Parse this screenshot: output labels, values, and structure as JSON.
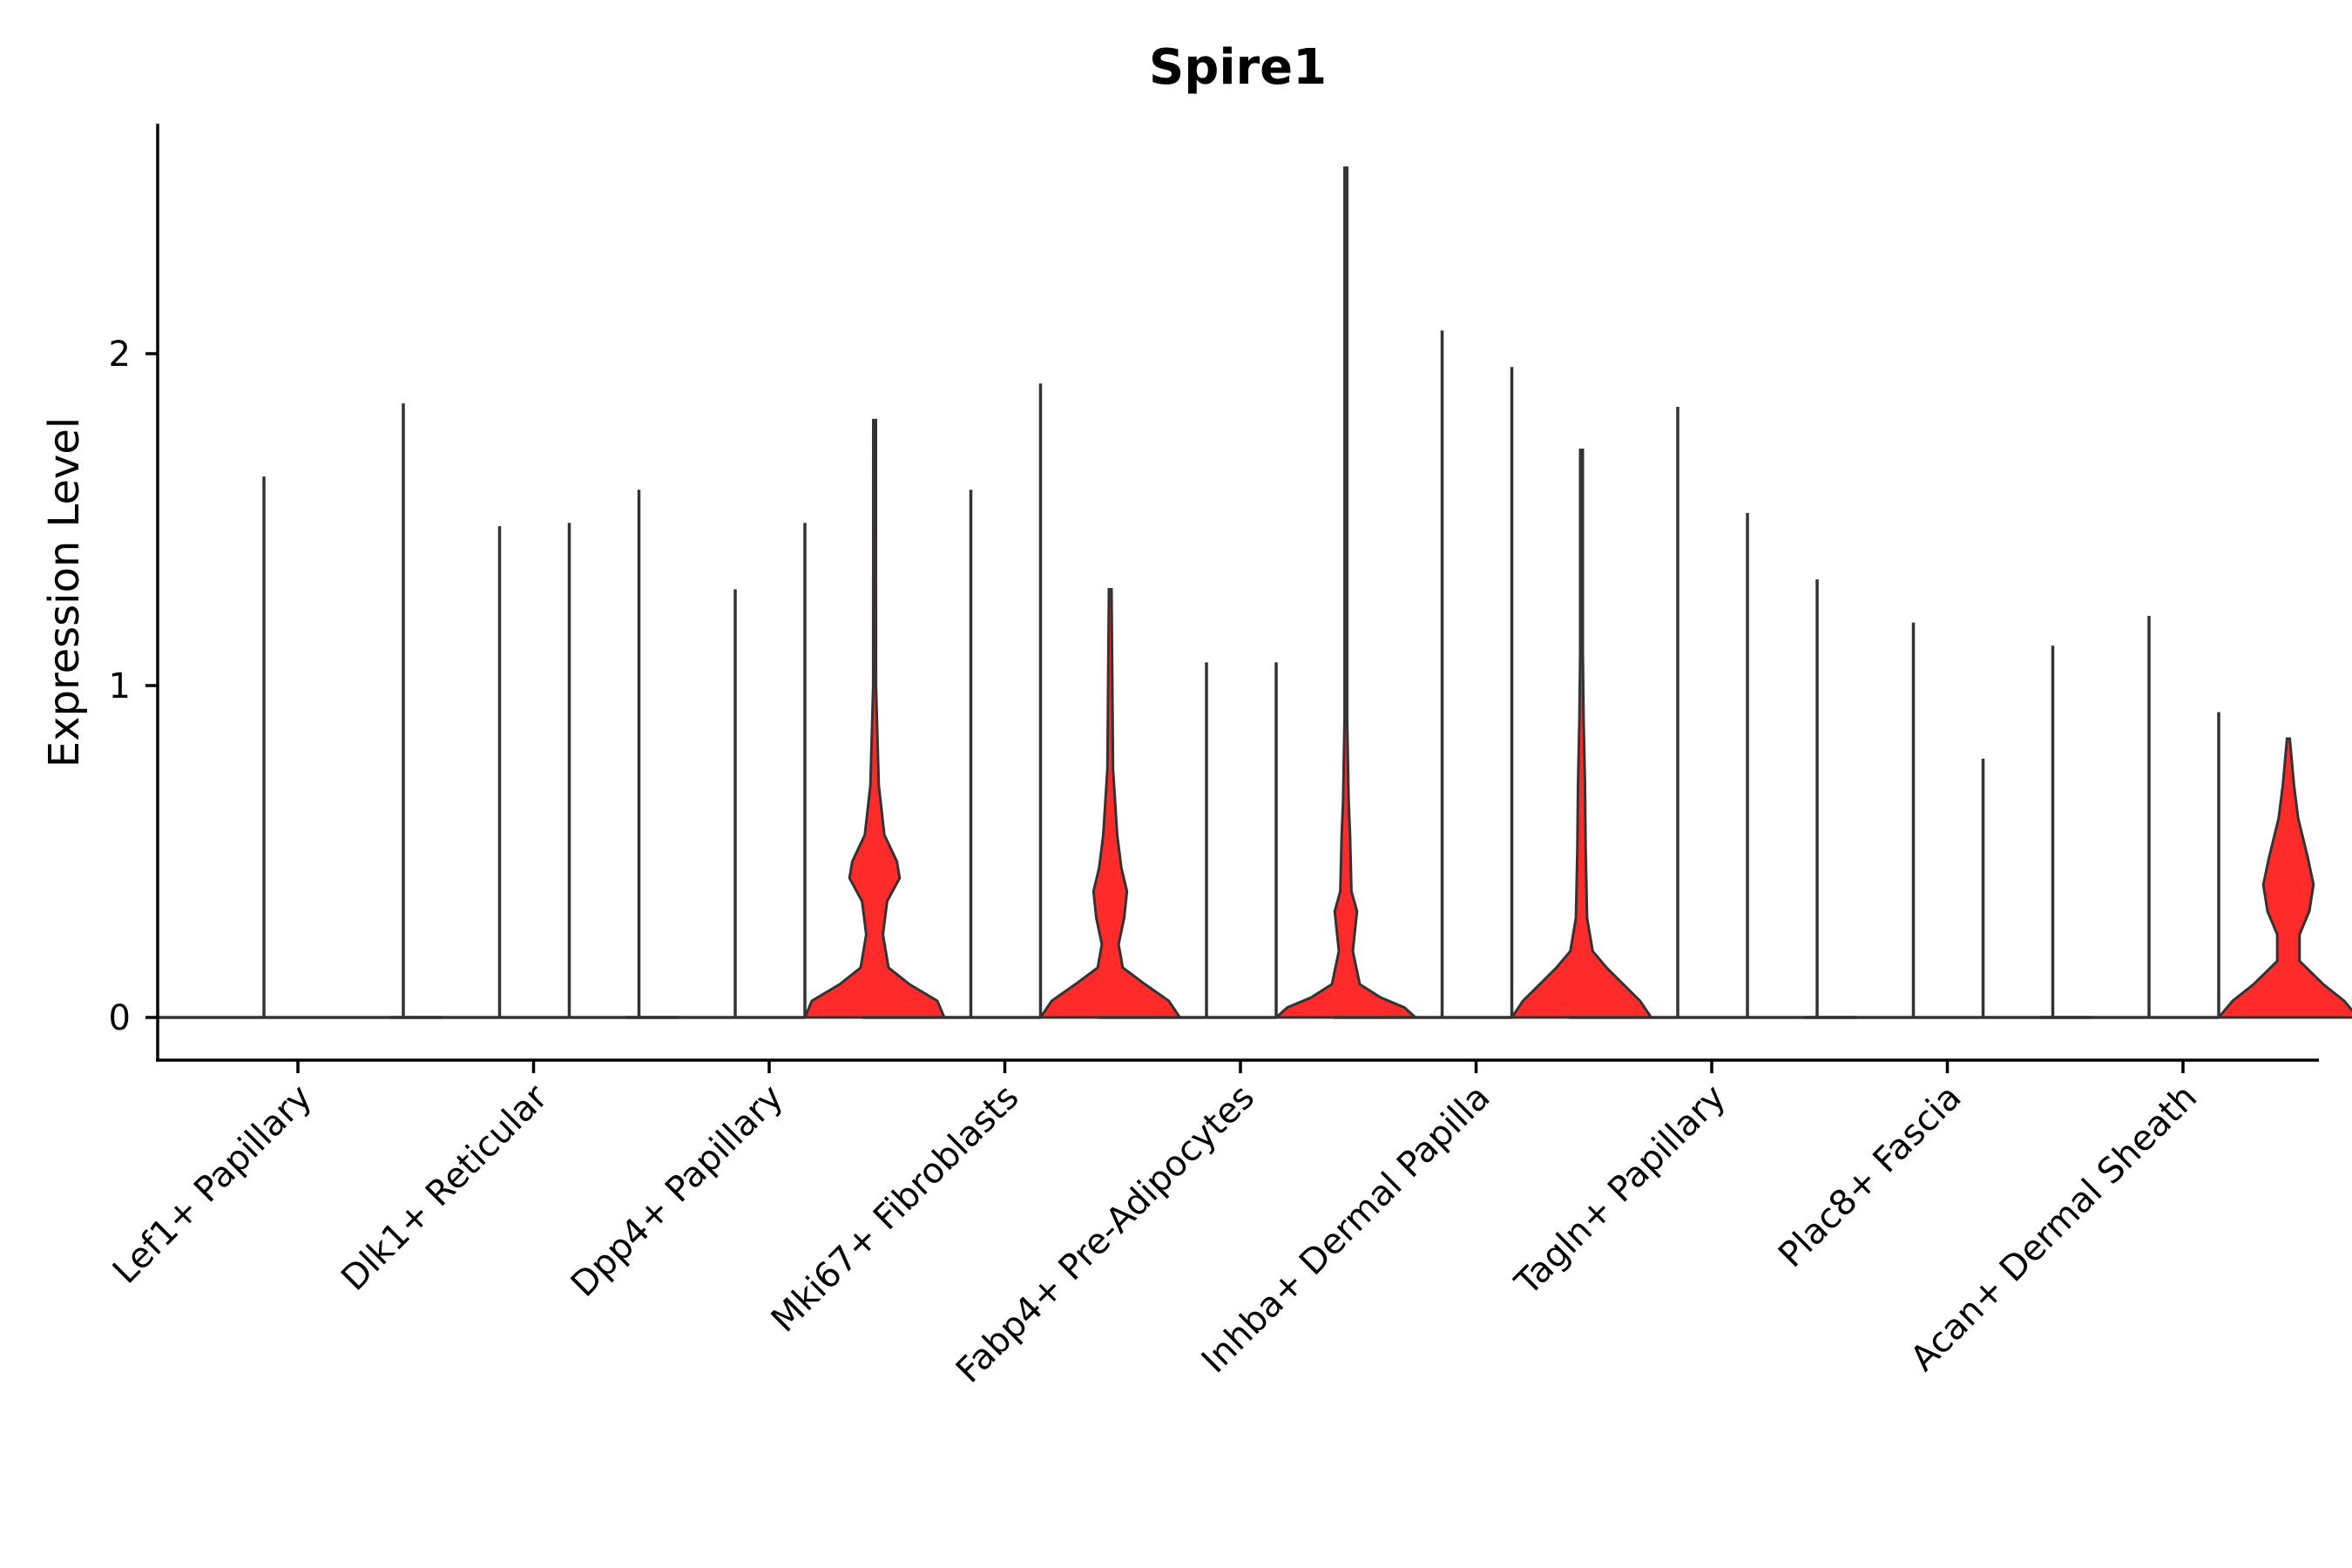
{
  "chart_data": {
    "type": "violin",
    "title": "Spire1",
    "xlabel": "",
    "ylabel": "Expression Level",
    "ylim": [
      -0.13,
      2.7
    ],
    "yticks": [
      0,
      1,
      2
    ],
    "categories": [
      "Lef1+ Papillary",
      "Dlk1+ Reticular",
      "Dpp4+ Papillary",
      "Mki67+ Fibroblasts",
      "Fabp4+ Pre-Adipocytes",
      "Inhba+ Dermal Papilla",
      "Tagln+ Papillary",
      "Plac8+ Fascia",
      "Acan+ Dermal Sheath"
    ],
    "fill_color": "#ff2a2a",
    "groups": [
      {
        "category": "Lef1+ Papillary",
        "sub": [
          {
            "max": 0,
            "filled": false
          },
          {
            "max": 1.63,
            "filled": false
          },
          {
            "max": 0,
            "filled": false
          },
          {
            "max": 1.85,
            "filled": false
          }
        ]
      },
      {
        "category": "Dlk1+ Reticular",
        "sub": [
          {
            "max": 0,
            "filled": false
          },
          {
            "max": 1.48,
            "filled": false
          },
          {
            "max": 1.49,
            "filled": false
          },
          {
            "max": 1.59,
            "filled": false
          }
        ]
      },
      {
        "category": "Dpp4+ Papillary",
        "sub": [
          {
            "max": 0,
            "filled": false
          },
          {
            "max": 1.29,
            "filled": false
          },
          {
            "max": 1.49,
            "filled": false
          },
          {
            "max": 1.8,
            "filled": true,
            "profile": [
              [
                0,
                0.5
              ],
              [
                0.05,
                0.45
              ],
              [
                0.1,
                0.25
              ],
              [
                0.15,
                0.1
              ],
              [
                0.25,
                0.06
              ],
              [
                0.35,
                0.09
              ],
              [
                0.42,
                0.18
              ],
              [
                0.47,
                0.16
              ],
              [
                0.55,
                0.07
              ],
              [
                0.7,
                0.03
              ],
              [
                1.0,
                0.01
              ],
              [
                1.8,
                0.005
              ]
            ]
          }
        ]
      },
      {
        "category": "Mki67+ Fibroblasts",
        "sub": [
          {
            "max": 0,
            "filled": false
          },
          {
            "max": 1.59,
            "filled": false
          },
          {
            "max": 1.91,
            "filled": false
          },
          {
            "max": 1.29,
            "filled": true,
            "profile": [
              [
                0,
                0.5
              ],
              [
                0.05,
                0.42
              ],
              [
                0.1,
                0.25
              ],
              [
                0.15,
                0.09
              ],
              [
                0.22,
                0.06
              ],
              [
                0.3,
                0.1
              ],
              [
                0.38,
                0.12
              ],
              [
                0.45,
                0.08
              ],
              [
                0.55,
                0.05
              ],
              [
                0.75,
                0.02
              ],
              [
                1.29,
                0.005
              ]
            ]
          }
        ]
      },
      {
        "category": "Fabp4+ Pre-Adipocytes",
        "sub": [
          {
            "max": 0,
            "filled": false
          },
          {
            "max": 1.07,
            "filled": false
          },
          {
            "max": 1.07,
            "filled": false
          },
          {
            "max": 2.56,
            "filled": true,
            "profile": [
              [
                0,
                0.5
              ],
              [
                0.03,
                0.42
              ],
              [
                0.06,
                0.25
              ],
              [
                0.1,
                0.1
              ],
              [
                0.2,
                0.05
              ],
              [
                0.28,
                0.07
              ],
              [
                0.32,
                0.08
              ],
              [
                0.38,
                0.04
              ],
              [
                0.55,
                0.03
              ],
              [
                0.65,
                0.02
              ],
              [
                0.9,
                0.008
              ],
              [
                2.56,
                0.004
              ]
            ]
          }
        ]
      },
      {
        "category": "Inhba+ Dermal Papilla",
        "sub": [
          {
            "max": 0,
            "filled": false
          },
          {
            "max": 2.07,
            "filled": false
          },
          {
            "max": 1.96,
            "filled": false
          },
          {
            "max": 1.71,
            "filled": true,
            "profile": [
              [
                0,
                0.5
              ],
              [
                0.05,
                0.42
              ],
              [
                0.1,
                0.3
              ],
              [
                0.15,
                0.18
              ],
              [
                0.2,
                0.08
              ],
              [
                0.3,
                0.04
              ],
              [
                0.5,
                0.03
              ],
              [
                0.7,
                0.025
              ],
              [
                0.9,
                0.015
              ],
              [
                1.1,
                0.008
              ],
              [
                1.71,
                0.004
              ]
            ]
          }
        ]
      },
      {
        "category": "Tagln+ Papillary",
        "sub": [
          {
            "max": 0,
            "filled": false
          },
          {
            "max": 1.84,
            "filled": false
          },
          {
            "max": 1.52,
            "filled": false
          },
          {
            "max": 1.32,
            "filled": false
          }
        ]
      },
      {
        "category": "Plac8+ Fascia",
        "sub": [
          {
            "max": 0,
            "filled": false
          },
          {
            "max": 1.19,
            "filled": false
          },
          {
            "max": 0.78,
            "filled": false
          },
          {
            "max": 1.12,
            "filled": false
          }
        ]
      },
      {
        "category": "Acan+ Dermal Sheath",
        "sub": [
          {
            "max": 0,
            "filled": false
          },
          {
            "max": 1.21,
            "filled": false
          },
          {
            "max": 0.92,
            "filled": false
          },
          {
            "max": 0.84,
            "filled": true,
            "profile": [
              [
                0,
                0.5
              ],
              [
                0.05,
                0.4
              ],
              [
                0.1,
                0.25
              ],
              [
                0.17,
                0.08
              ],
              [
                0.25,
                0.08
              ],
              [
                0.32,
                0.15
              ],
              [
                0.4,
                0.18
              ],
              [
                0.48,
                0.14
              ],
              [
                0.6,
                0.07
              ],
              [
                0.7,
                0.04
              ],
              [
                0.84,
                0.01
              ]
            ]
          }
        ]
      }
    ],
    "grid": false,
    "legend": "none"
  }
}
